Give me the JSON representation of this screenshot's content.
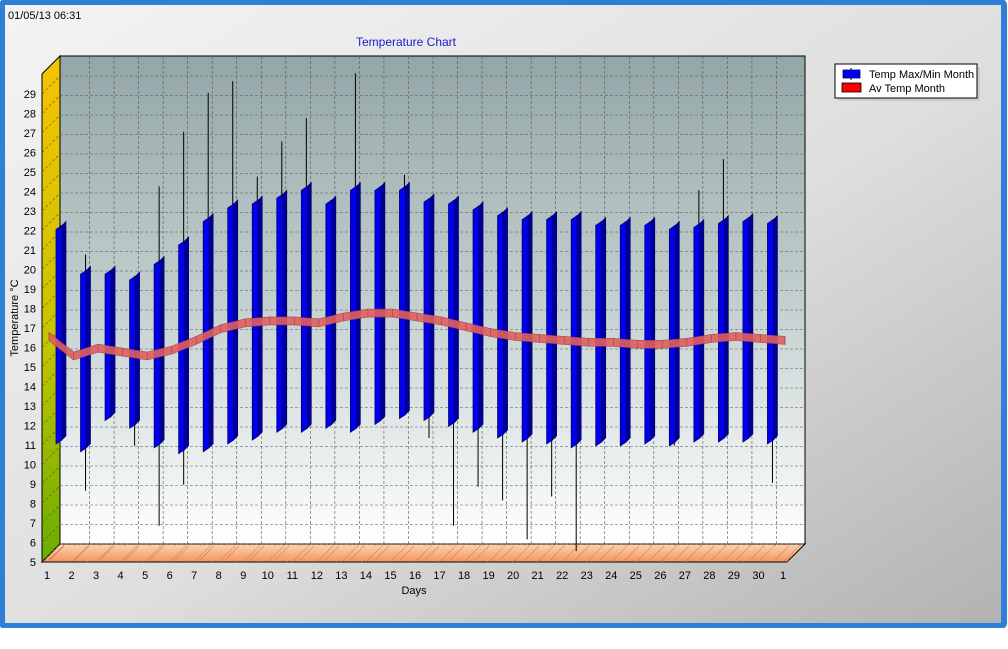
{
  "timestamp": "01/05/13 06:31",
  "chart_data": {
    "type": "range-bar-line",
    "title": "Temperature Chart",
    "xlabel": "Days",
    "ylabel": "Temperature °C",
    "ylim": [
      5,
      30
    ],
    "yticks": [
      5,
      6,
      7,
      8,
      9,
      10,
      11,
      12,
      13,
      14,
      15,
      16,
      17,
      18,
      19,
      20,
      21,
      22,
      23,
      24,
      25,
      26,
      27,
      28,
      29
    ],
    "categories": [
      "1",
      "2",
      "3",
      "4",
      "5",
      "6",
      "7",
      "8",
      "9",
      "10",
      "11",
      "12",
      "13",
      "14",
      "15",
      "16",
      "17",
      "18",
      "19",
      "20",
      "21",
      "22",
      "23",
      "24",
      "25",
      "26",
      "27",
      "28",
      "29",
      "30",
      "1"
    ],
    "grid": true,
    "legend_position": "top-right",
    "colors": {
      "bar": "#0000ee",
      "bar_edge": "#000066",
      "avg": "#e06060",
      "floor": "#f4a070",
      "wall": "#9fb0b0",
      "left_wall_top": "#f5c400",
      "left_wall_bottom": "#7ab800",
      "frame": "#2f7fd8"
    },
    "series": [
      {
        "name": "Temp Max/Min Month",
        "type": "range-bar",
        "box_low": [
          10.8,
          10.4,
          12.0,
          11.6,
          10.6,
          10.3,
          10.4,
          10.8,
          11.0,
          11.4,
          11.4,
          11.6,
          11.4,
          11.8,
          12.1,
          12.0,
          11.7,
          11.4,
          11.1,
          10.9,
          10.8,
          10.6,
          10.7,
          10.7,
          10.8,
          10.7,
          10.9,
          10.9,
          10.9,
          10.8
        ],
        "box_high": [
          21.8,
          19.5,
          19.5,
          19.2,
          20.0,
          21.0,
          22.2,
          22.9,
          23.1,
          23.4,
          23.8,
          23.1,
          23.8,
          23.8,
          23.8,
          23.2,
          23.1,
          22.8,
          22.5,
          22.3,
          22.3,
          22.3,
          22.0,
          22.0,
          22.0,
          21.8,
          21.9,
          22.1,
          22.2,
          22.1
        ],
        "whisker_low": [
          10.8,
          8.2,
          12.0,
          10.5,
          6.4,
          8.5,
          10.4,
          10.8,
          11.0,
          11.4,
          11.4,
          11.6,
          11.4,
          11.8,
          12.1,
          10.9,
          6.4,
          8.4,
          7.7,
          5.7,
          7.9,
          5.1,
          10.7,
          10.7,
          10.8,
          10.5,
          10.9,
          10.9,
          10.9,
          8.6
        ],
        "whisker_high": [
          21.8,
          20.3,
          19.5,
          19.2,
          23.8,
          26.6,
          28.6,
          29.2,
          24.3,
          26.1,
          27.3,
          23.1,
          29.6,
          23.8,
          24.4,
          23.2,
          23.1,
          22.8,
          22.5,
          22.3,
          22.3,
          22.3,
          22.0,
          22.0,
          22.0,
          21.8,
          23.6,
          25.2,
          22.2,
          22.1
        ]
      },
      {
        "name": "Av Temp Month",
        "type": "line",
        "values": [
          16.0,
          15.0,
          15.4,
          15.2,
          15.0,
          15.3,
          15.8,
          16.4,
          16.7,
          16.8,
          16.8,
          16.7,
          17.0,
          17.2,
          17.2,
          17.0,
          16.8,
          16.5,
          16.2,
          16.0,
          15.9,
          15.8,
          15.7,
          15.7,
          15.6,
          15.6,
          15.7,
          15.9,
          16.0,
          15.9,
          15.8
        ]
      }
    ]
  }
}
